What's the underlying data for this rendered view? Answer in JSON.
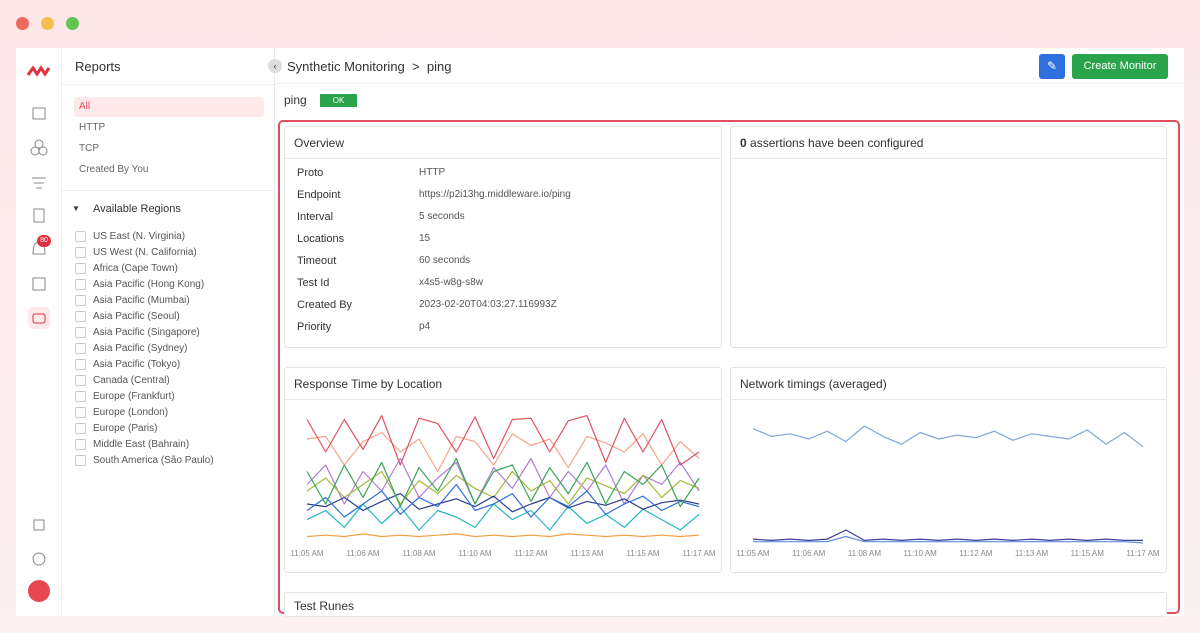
{
  "sidebar": {
    "title": "Reports",
    "filters": [
      "All",
      "HTTP",
      "TCP",
      "Created By You"
    ],
    "regions_title": "Available Regions",
    "regions": [
      "US East (N. Virginia)",
      "US West (N. California)",
      "Africa (Cape Town)",
      "Asia Pacific (Hong Kong)",
      "Asia Pacific (Mumbai)",
      "Asia Pacific (Seoul)",
      "Asia Pacific (Singapore)",
      "Asia Pacific (Sydney)",
      "Asia Pacific (Tokyo)",
      "Canada (Central)",
      "Europe (Frankfurt)",
      "Europe (London)",
      "Europe (Paris)",
      "Middle East (Bahrain)",
      "South America (São Paulo)"
    ]
  },
  "nav": {
    "badge": "80"
  },
  "header": {
    "breadcrumb": [
      "Synthetic Monitoring",
      "ping"
    ],
    "separator": ">",
    "button": "Create Monitor"
  },
  "status": {
    "name": "ping",
    "badge": "OK"
  },
  "overview": {
    "title": "Overview",
    "rows": [
      [
        "Proto",
        "HTTP"
      ],
      [
        "Endpoint",
        "https://p2i13hg.middleware.io/ping"
      ],
      [
        "Interval",
        "5 seconds"
      ],
      [
        "Locations",
        "15"
      ],
      [
        "Timeout",
        "60 seconds"
      ],
      [
        "Test Id",
        "x4s5-w8g-s8w"
      ],
      [
        "Created By",
        "2023-02-20T04:03:27.116993Z"
      ],
      [
        "Priority",
        "p4"
      ]
    ]
  },
  "assertions": {
    "count": "0",
    "text": "assertions have been configured"
  },
  "test_runs": {
    "title": "Test Runes"
  },
  "chart_data": [
    {
      "type": "line",
      "title": "Response Time by Location",
      "ylim": [
        0,
        100
      ],
      "categories": [
        "11:05 AM",
        null,
        null,
        "11:06 AM",
        null,
        null,
        "11:08 AM",
        null,
        null,
        "11:10 AM",
        null,
        null,
        "11:12 AM",
        null,
        null,
        "11:13 AM",
        null,
        null,
        "11:15 AM",
        null,
        null,
        "11:17 AM"
      ],
      "series": [
        {
          "color": "#f5a040",
          "values": [
            5,
            6,
            5,
            7,
            5,
            6,
            5,
            6,
            7,
            5,
            6,
            5,
            6,
            5,
            7,
            6,
            5,
            6,
            5,
            6,
            5,
            6
          ]
        },
        {
          "color": "#f2a58a",
          "values": [
            80,
            82,
            60,
            78,
            85,
            70,
            80,
            55,
            82,
            78,
            60,
            84,
            75,
            80,
            58,
            82,
            77,
            70,
            84,
            60,
            78,
            65
          ]
        },
        {
          "color": "#b07cd8",
          "values": [
            45,
            60,
            30,
            55,
            40,
            65,
            35,
            50,
            62,
            30,
            58,
            42,
            65,
            35,
            55,
            40,
            60,
            30,
            52,
            45,
            62,
            40
          ]
        },
        {
          "color": "#a5b83a",
          "values": [
            40,
            50,
            35,
            45,
            55,
            30,
            48,
            38,
            52,
            42,
            35,
            55,
            40,
            48,
            30,
            50,
            44,
            38,
            52,
            35,
            48,
            42
          ]
        },
        {
          "color": "#26b5c4",
          "values": [
            18,
            25,
            12,
            30,
            15,
            28,
            10,
            25,
            20,
            12,
            30,
            18,
            25,
            10,
            28,
            15,
            22,
            12,
            26,
            18,
            10,
            22
          ]
        },
        {
          "color": "#2c3e8c",
          "values": [
            30,
            28,
            35,
            25,
            32,
            38,
            26,
            30,
            34,
            28,
            36,
            24,
            30,
            35,
            27,
            32,
            29,
            34,
            26,
            31,
            33,
            30
          ]
        },
        {
          "color": "#2f6fd6",
          "values": [
            25,
            35,
            20,
            30,
            40,
            22,
            35,
            28,
            45,
            25,
            30,
            38,
            20,
            35,
            28,
            40,
            22,
            30,
            36,
            25,
            32,
            28
          ]
        },
        {
          "color": "#3aa655",
          "values": [
            55,
            30,
            60,
            35,
            62,
            28,
            58,
            40,
            65,
            30,
            55,
            60,
            32,
            58,
            38,
            62,
            30,
            55,
            45,
            60,
            28,
            50
          ]
        },
        {
          "color": "#e05260",
          "values": [
            95,
            70,
            95,
            72,
            98,
            60,
            96,
            92,
            70,
            97,
            65,
            95,
            96,
            70,
            94,
            98,
            62,
            96,
            70,
            95,
            60,
            70
          ]
        }
      ]
    },
    {
      "type": "line",
      "title": "Network timings (averaged)",
      "ylim": [
        0,
        100
      ],
      "categories": [
        "11:05 AM",
        null,
        null,
        "11:06 AM",
        null,
        null,
        "11:08 AM",
        null,
        null,
        "11:10 AM",
        null,
        null,
        "11:12 AM",
        null,
        null,
        "11:13 AM",
        null,
        null,
        "11:15 AM",
        null,
        null,
        "11:17 AM"
      ],
      "series": [
        {
          "color": "#7fa6d6",
          "values": [
            88,
            82,
            84,
            80,
            86,
            78,
            90,
            82,
            76,
            85,
            80,
            83,
            81,
            86,
            79,
            84,
            82,
            80,
            87,
            76,
            85,
            74
          ]
        },
        {
          "color": "#5a8fd8",
          "values": [
            1,
            1,
            1,
            1,
            1,
            5,
            1,
            1,
            1,
            1,
            1,
            1,
            1,
            1,
            1,
            1,
            1,
            1,
            1,
            1,
            1,
            0
          ]
        },
        {
          "color": "#3a3f9e",
          "values": [
            3,
            2,
            3,
            2,
            3,
            10,
            2,
            3,
            2,
            3,
            2,
            3,
            2,
            3,
            2,
            3,
            2,
            3,
            2,
            3,
            2,
            2
          ]
        }
      ]
    }
  ]
}
